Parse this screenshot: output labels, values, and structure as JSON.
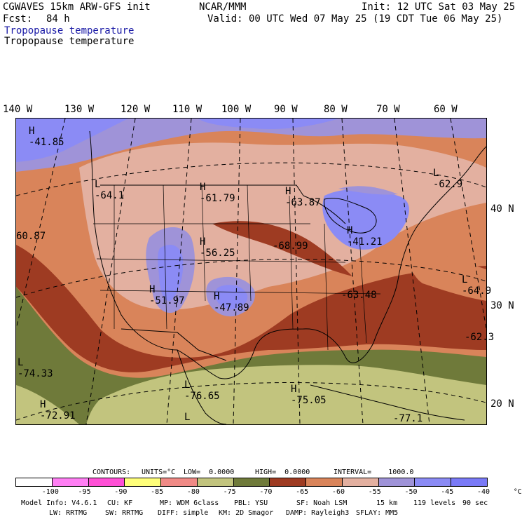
{
  "header": {
    "model_line": "CGWAVES 15km ARW-GFS init",
    "org": "NCAR/MMM",
    "init": "Init: 12 UTC Sat 03 May 25",
    "fcst_label": "Fcst:",
    "fcst_value": "84 h",
    "valid": "Valid: 00 UTC Wed 07 May 25 (19 CDT Tue 06 May 25)",
    "field_title_blue": "Tropopause temperature",
    "field_title": "Tropopause temperature"
  },
  "longitude_labels": [
    "140 W",
    "130 W",
    "120 W",
    "110 W",
    "100 W",
    "90 W",
    "80 W",
    "70 W",
    "60 W"
  ],
  "latitude_labels": [
    "40 N",
    "30 N",
    "20 N"
  ],
  "map_annotations": [
    {
      "sym": "H",
      "value": "-41.85"
    },
    {
      "sym": "L",
      "value": "-64.1"
    },
    {
      "sym": "H",
      "value": "-61.79"
    },
    {
      "sym": "H",
      "value": "-63.87"
    },
    {
      "sym": "L",
      "value": "-62.9"
    },
    {
      "sym": "",
      "value": "60.87"
    },
    {
      "sym": "H",
      "value": "-56.25"
    },
    {
      "sym": "",
      "value": "-68.99"
    },
    {
      "sym": "H",
      "value": "-41.21"
    },
    {
      "sym": "H",
      "value": "-51.97"
    },
    {
      "sym": "H",
      "value": "-47.89"
    },
    {
      "sym": "",
      "value": "-63.48"
    },
    {
      "sym": "L",
      "value": "-64.9"
    },
    {
      "sym": "",
      "value": "-62.3"
    },
    {
      "sym": "L",
      "value": "-74.33"
    },
    {
      "sym": "L",
      "value": "-76.65"
    },
    {
      "sym": "H",
      "value": "-75.05"
    },
    {
      "sym": "H",
      "value": "-72.91"
    },
    {
      "sym": "L",
      "value": ""
    },
    {
      "sym": "",
      "value": "-77.1"
    }
  ],
  "contours": {
    "label": "CONTOURS:",
    "units": "UNITS=°C",
    "low": "LOW=  0.0000",
    "high": "HIGH=  0.0000",
    "interval": "INTERVAL=    1000.0"
  },
  "colorbar": {
    "colors": [
      "#ffffff",
      "#ff7ff4",
      "#ff50d6",
      "#ffff7a",
      "#f08a86",
      "#c2c47e",
      "#6f7a3a",
      "#9e3b22",
      "#d9845a",
      "#e3b0a0",
      "#9f93d8",
      "#8b8bf5",
      "#7a7af7"
    ],
    "ticks": [
      "-100",
      "-95",
      "-90",
      "-85",
      "-80",
      "-75",
      "-70",
      "-65",
      "-60",
      "-55",
      "-50",
      "-45",
      "-40",
      "°C"
    ]
  },
  "footer": {
    "line1": [
      "Model Info: V4.6.1",
      "CU: KF",
      "MP: WDM 6class",
      "PBL: YSU",
      "SF: Noah LSM",
      "15 km",
      "119 levels",
      "90 sec"
    ],
    "line2": [
      "LW: RRTMG",
      "SW: RRTMG",
      "DIFF: simple",
      "KM: 2D Smagor",
      "DAMP: Rayleigh3",
      "SFLAY: MM5"
    ]
  },
  "field_colors": {
    "olive": "#6f7a3a",
    "khaki": "#c2c47e",
    "dark_red": "#9e3b22",
    "orange": "#d9845a",
    "salmon_pink": "#e3b0a0",
    "lavender": "#9f93d8",
    "blue": "#8b8bf5"
  }
}
